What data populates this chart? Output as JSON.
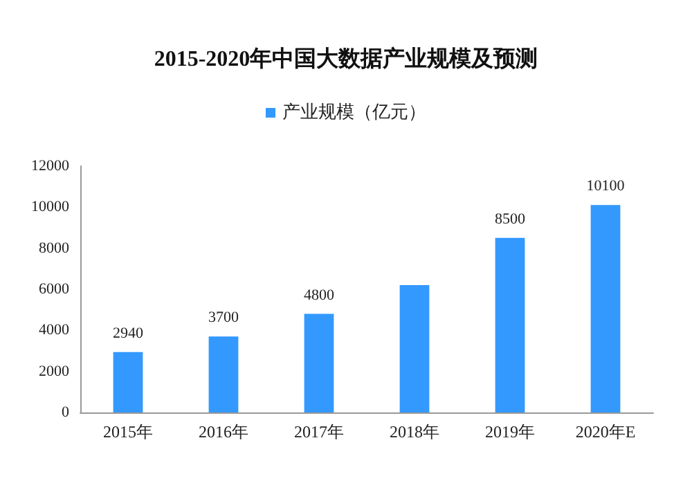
{
  "chart_data": {
    "type": "bar",
    "title": "2015-2020年中国大数据产业规模及预测",
    "categories": [
      "2015年",
      "2016年",
      "2017年",
      "2018年",
      "2019年",
      "2020年E"
    ],
    "series": [
      {
        "name": "产业规模（亿元）",
        "color": "#3399ff",
        "values": [
          2940,
          3700,
          4800,
          6200,
          8500,
          10100
        ],
        "value_labels": [
          "2940",
          "3700",
          "4800",
          null,
          "8500",
          "10100"
        ]
      }
    ],
    "ylim": [
      0,
      12000
    ],
    "yticks": [
      0,
      2000,
      4000,
      6000,
      8000,
      10000,
      12000
    ],
    "grid": false,
    "legend": "top"
  }
}
